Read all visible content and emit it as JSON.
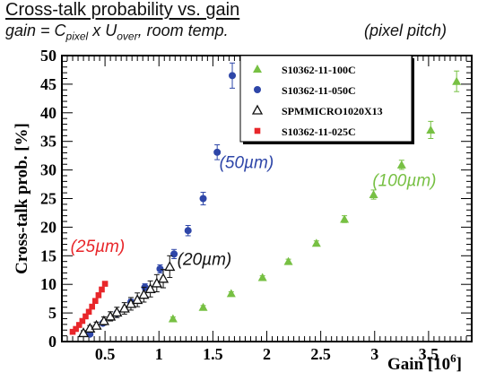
{
  "header": {
    "title": "Cross-talk probability vs. gain",
    "subtitle_parts": [
      "gain = C",
      "pixel",
      " x U",
      "over",
      ", room temp."
    ],
    "subtitle_right": "(pixel pitch)"
  },
  "colors": {
    "s100": "#77c043",
    "s050": "#2e46a8",
    "s013": "#111111",
    "s025": "#e8262a"
  },
  "chart_data": {
    "type": "scatter",
    "xlabel_main": "Gain [10",
    "xlabel_exp": "6",
    "xlabel_tail": "]",
    "ylabel": "Cross-talk prob. [%]",
    "xlim": [
      0.1,
      3.9
    ],
    "ylim": [
      0,
      50
    ],
    "xticks": [
      0.5,
      1,
      1.5,
      2,
      2.5,
      3,
      3.5
    ],
    "xtick_labels": [
      "0.5",
      "1",
      "1.5",
      "2",
      "2.5",
      "3",
      "3.5"
    ],
    "yticks": [
      0,
      5,
      10,
      15,
      20,
      25,
      30,
      35,
      40,
      45,
      50
    ],
    "ytick_labels": [
      "0",
      "5",
      "10",
      "15",
      "20",
      "25",
      "30",
      "35",
      "40",
      "45",
      "50"
    ],
    "legend_position": "top-right",
    "series": [
      {
        "name": "S10362-11-100C",
        "marker": "triangle-filled",
        "color": "#77c043",
        "points": [
          [
            1.13,
            4.0,
            0.3
          ],
          [
            1.41,
            6.0,
            0.3
          ],
          [
            1.67,
            8.4,
            0.3
          ],
          [
            1.96,
            11.2,
            0.3
          ],
          [
            2.2,
            14.0,
            0.4
          ],
          [
            2.46,
            17.2,
            0.4
          ],
          [
            2.72,
            21.4,
            0.6
          ],
          [
            2.99,
            25.7,
            0.8
          ],
          [
            3.25,
            30.9,
            0.8
          ],
          [
            3.52,
            37.0,
            1.5
          ],
          [
            3.76,
            45.5,
            1.8
          ]
        ]
      },
      {
        "name": "S10362-11-050C",
        "marker": "circle",
        "color": "#2e46a8",
        "points": [
          [
            0.36,
            1.3,
            0.2
          ],
          [
            0.48,
            3.2,
            0.3
          ],
          [
            0.61,
            4.9,
            0.4
          ],
          [
            0.74,
            6.9,
            0.5
          ],
          [
            0.87,
            9.5,
            0.6
          ],
          [
            1.01,
            12.7,
            0.7
          ],
          [
            1.14,
            15.3,
            0.8
          ],
          [
            1.27,
            19.4,
            0.9
          ],
          [
            1.41,
            25.0,
            1.1
          ],
          [
            1.54,
            33.1,
            1.3
          ],
          [
            1.68,
            46.5,
            2.2
          ]
        ]
      },
      {
        "name": "SPMMICRO1020X13",
        "marker": "triangle-open",
        "color": "#111111",
        "points": [
          [
            0.3,
            1.5,
            0.4
          ],
          [
            0.36,
            2.3,
            0.5
          ],
          [
            0.42,
            2.8,
            0.6
          ],
          [
            0.49,
            3.6,
            0.7
          ],
          [
            0.55,
            4.4,
            0.8
          ],
          [
            0.61,
            5.1,
            0.9
          ],
          [
            0.68,
            5.8,
            1.0
          ],
          [
            0.74,
            6.6,
            1.1
          ],
          [
            0.8,
            7.3,
            1.2
          ],
          [
            0.86,
            8.2,
            1.3
          ],
          [
            0.92,
            9.2,
            1.4
          ],
          [
            0.98,
            10.2,
            1.5
          ],
          [
            1.04,
            11.0,
            1.6
          ],
          [
            1.1,
            13.1,
            1.9
          ]
        ]
      },
      {
        "name": "S10362-11-025C",
        "marker": "square",
        "color": "#e8262a",
        "points": [
          [
            0.2,
            1.7,
            0
          ],
          [
            0.23,
            2.2,
            0
          ],
          [
            0.26,
            2.9,
            0
          ],
          [
            0.29,
            3.6,
            0
          ],
          [
            0.32,
            4.4,
            0
          ],
          [
            0.35,
            5.2,
            0
          ],
          [
            0.38,
            6.1,
            0
          ],
          [
            0.41,
            7.1,
            0
          ],
          [
            0.44,
            8.1,
            0
          ],
          [
            0.47,
            9.1,
            0
          ],
          [
            0.5,
            10.1,
            0
          ]
        ]
      }
    ],
    "annotations": [
      {
        "text": "(25µm)",
        "x": 0.18,
        "y": 15.7,
        "color": "#e8262a"
      },
      {
        "text": "(20µm)",
        "x": 1.17,
        "y": 13.4,
        "color": "#111111"
      },
      {
        "text": "(50µm)",
        "x": 1.56,
        "y": 30.3,
        "color": "#2e46a8"
      },
      {
        "text": "(100µm)",
        "x": 2.98,
        "y": 27.2,
        "color": "#77c043"
      }
    ]
  }
}
